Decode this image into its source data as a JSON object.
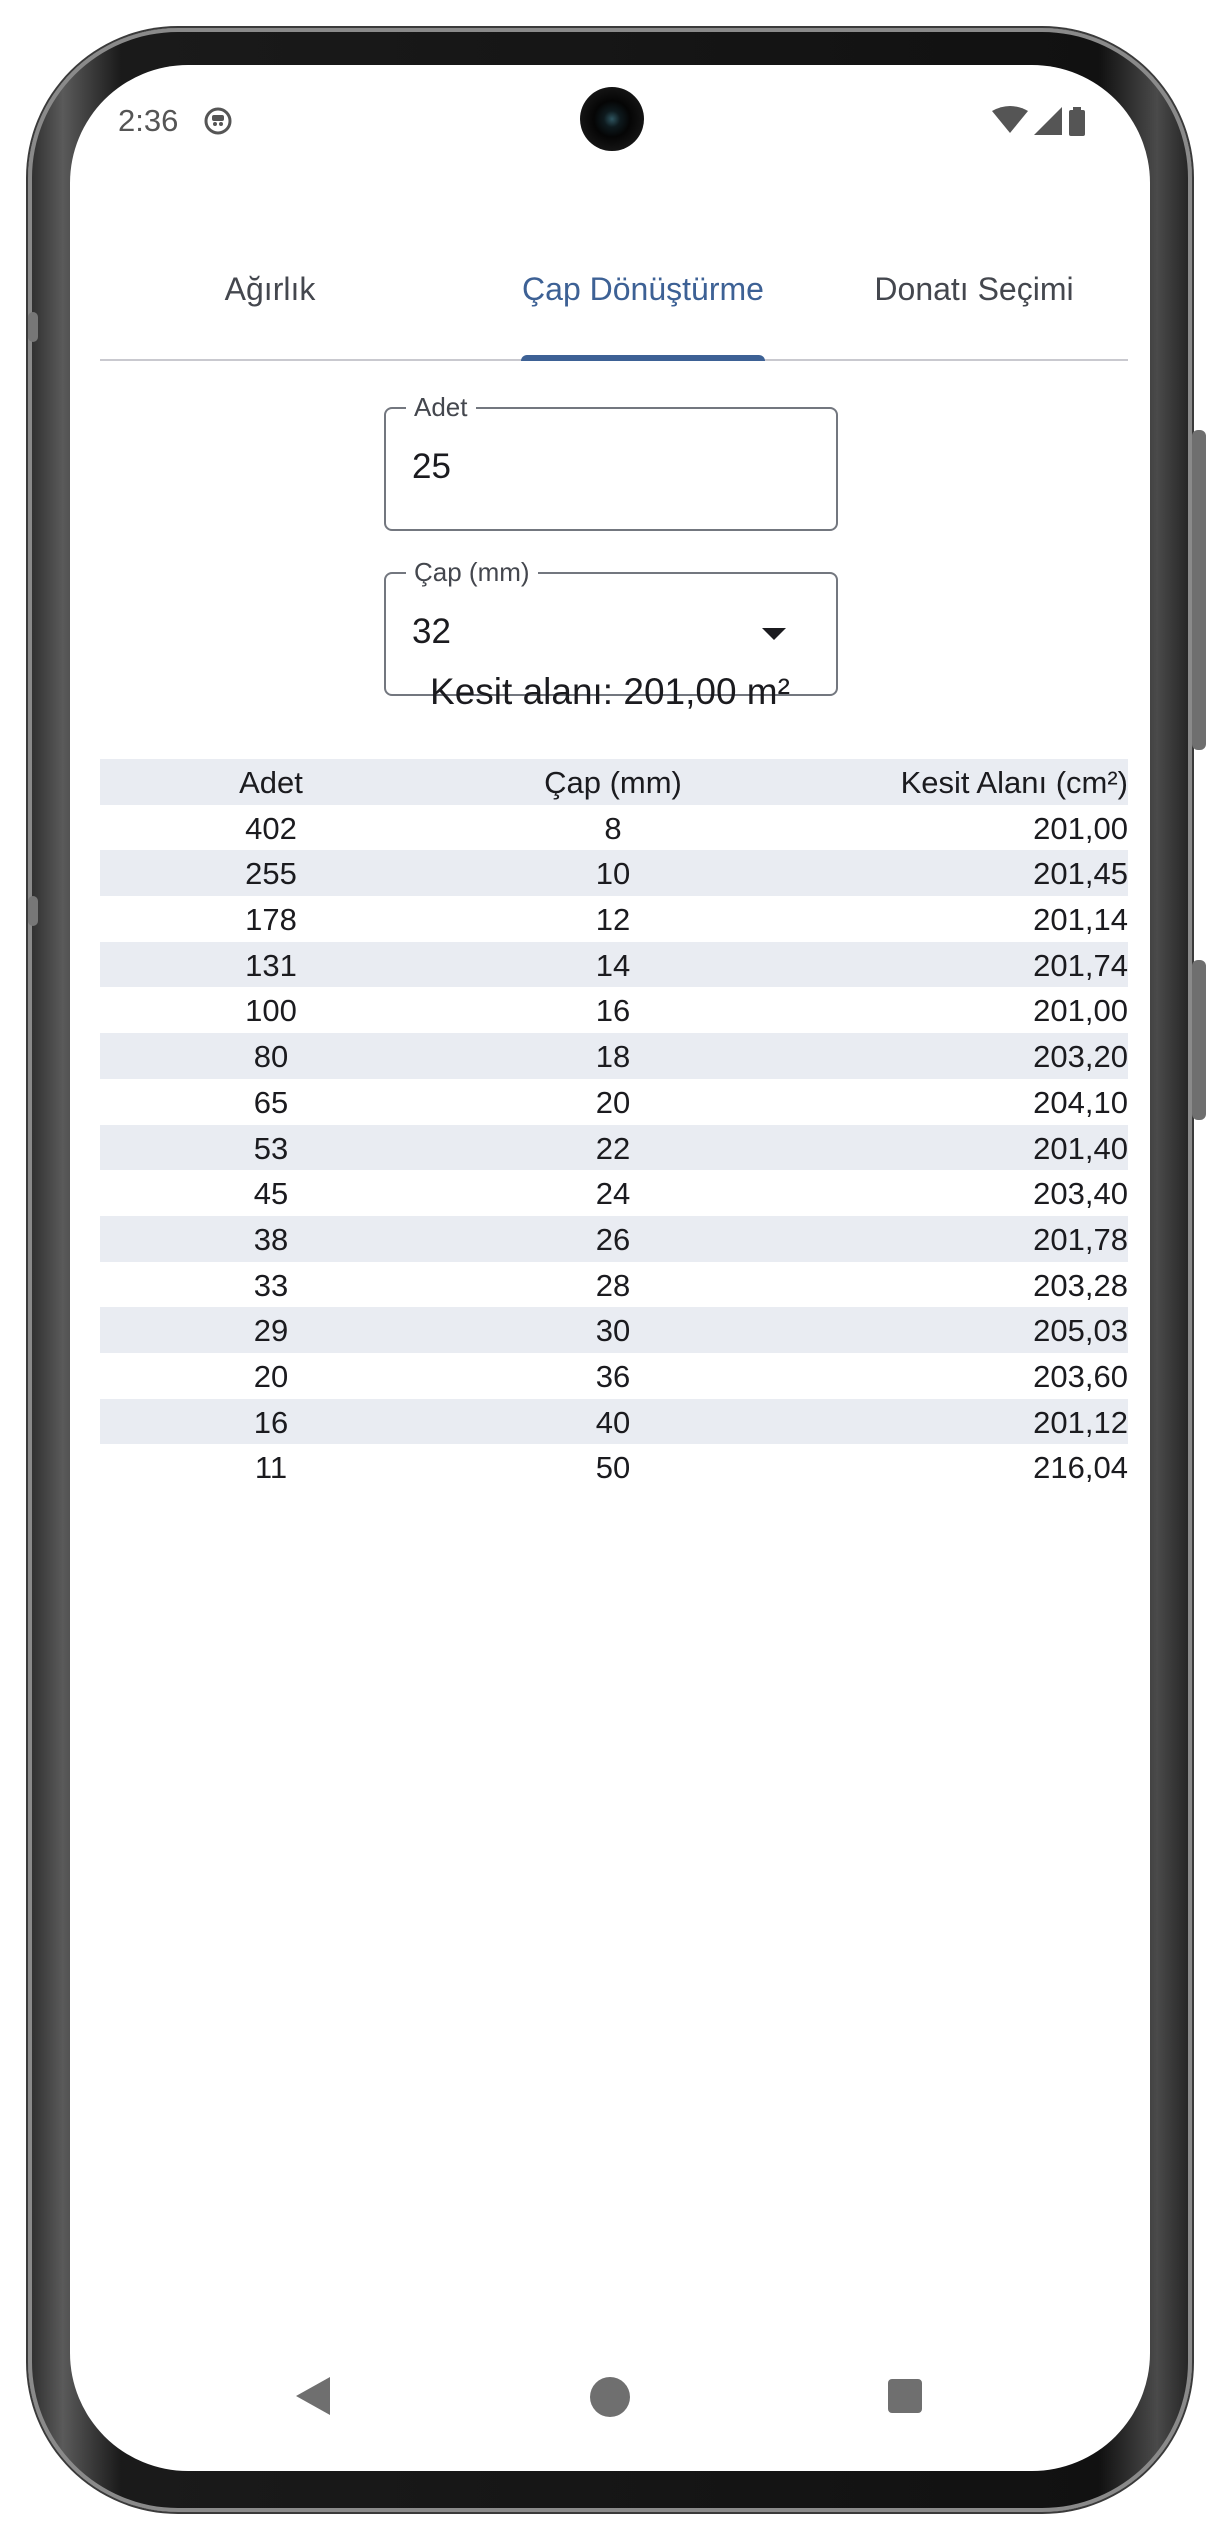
{
  "status_bar": {
    "time": "2:36",
    "icons": [
      "app-notification-icon",
      "wifi-icon",
      "signal-icon",
      "battery-icon"
    ]
  },
  "tabs": [
    {
      "label": "Ağırlık",
      "active": false
    },
    {
      "label": "Çap Dönüştürme",
      "active": true
    },
    {
      "label": "Donatı Seçimi",
      "active": false
    }
  ],
  "form": {
    "count_field": {
      "label": "Adet",
      "value": "25"
    },
    "diameter_field": {
      "label": "Çap (mm)",
      "value": "32"
    }
  },
  "result_text": "Kesit alanı: 201,00 m²",
  "table": {
    "headers": [
      "Adet",
      "Çap (mm)",
      "Kesit Alanı (cm²)"
    ],
    "rows": [
      [
        "402",
        "8",
        "201,00"
      ],
      [
        "255",
        "10",
        "201,45"
      ],
      [
        "178",
        "12",
        "201,14"
      ],
      [
        "131",
        "14",
        "201,74"
      ],
      [
        "100",
        "16",
        "201,00"
      ],
      [
        "80",
        "18",
        "203,20"
      ],
      [
        "65",
        "20",
        "204,10"
      ],
      [
        "53",
        "22",
        "201,40"
      ],
      [
        "45",
        "24",
        "203,40"
      ],
      [
        "38",
        "26",
        "201,78"
      ],
      [
        "33",
        "28",
        "203,28"
      ],
      [
        "29",
        "30",
        "205,03"
      ],
      [
        "20",
        "36",
        "203,60"
      ],
      [
        "16",
        "40",
        "201,12"
      ],
      [
        "11",
        "50",
        "216,04"
      ]
    ]
  },
  "nav_bar": {
    "icons": [
      "back-icon",
      "home-icon",
      "recents-icon"
    ]
  },
  "colors": {
    "accent": "#3d6195",
    "row_shade": "#e9ecf2",
    "text": "#1b1b1f"
  }
}
